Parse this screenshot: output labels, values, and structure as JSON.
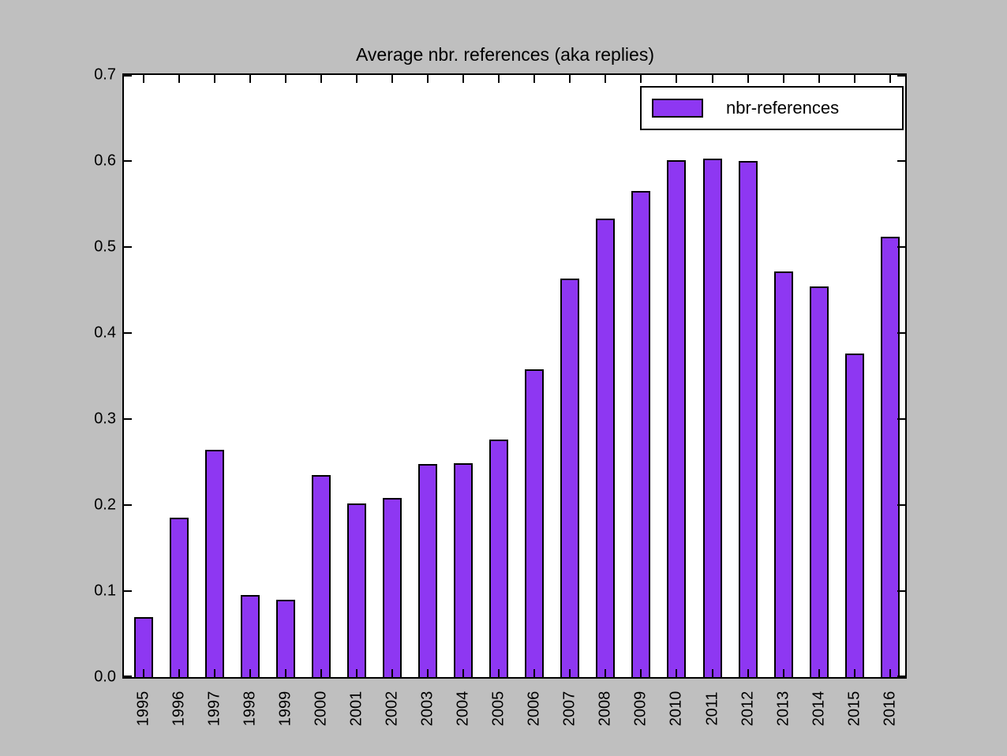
{
  "figure": {
    "background_color": "#bfbfbf",
    "plot_background_color": "#ffffff",
    "frame_color": "#000000",
    "text_color": "#000000"
  },
  "chart_data": {
    "type": "bar",
    "title": "Average nbr. references (aka replies)",
    "series_name": "nbr-references",
    "categories": [
      "1995",
      "1996",
      "1997",
      "1998",
      "1999",
      "2000",
      "2001",
      "2002",
      "2003",
      "2004",
      "2005",
      "2006",
      "2007",
      "2008",
      "2009",
      "2010",
      "2011",
      "2012",
      "2013",
      "2014",
      "2015",
      "2016"
    ],
    "values": [
      0.07,
      0.185,
      0.264,
      0.095,
      0.09,
      0.235,
      0.202,
      0.208,
      0.248,
      0.249,
      0.276,
      0.358,
      0.463,
      0.533,
      0.565,
      0.601,
      0.603,
      0.6,
      0.472,
      0.454,
      0.376,
      0.512
    ],
    "xlabel": "",
    "ylabel": "",
    "ylim": [
      0.0,
      0.7
    ],
    "ytick_step": 0.1,
    "ytick_labels": [
      "0.0",
      "0.1",
      "0.2",
      "0.3",
      "0.4",
      "0.5",
      "0.6",
      "0.7"
    ],
    "xtick_label_rotation_deg": 90,
    "grid": false,
    "legend_position": "upper right",
    "bar_color": "#8e37f2",
    "bar_edge_color": "#000000"
  }
}
